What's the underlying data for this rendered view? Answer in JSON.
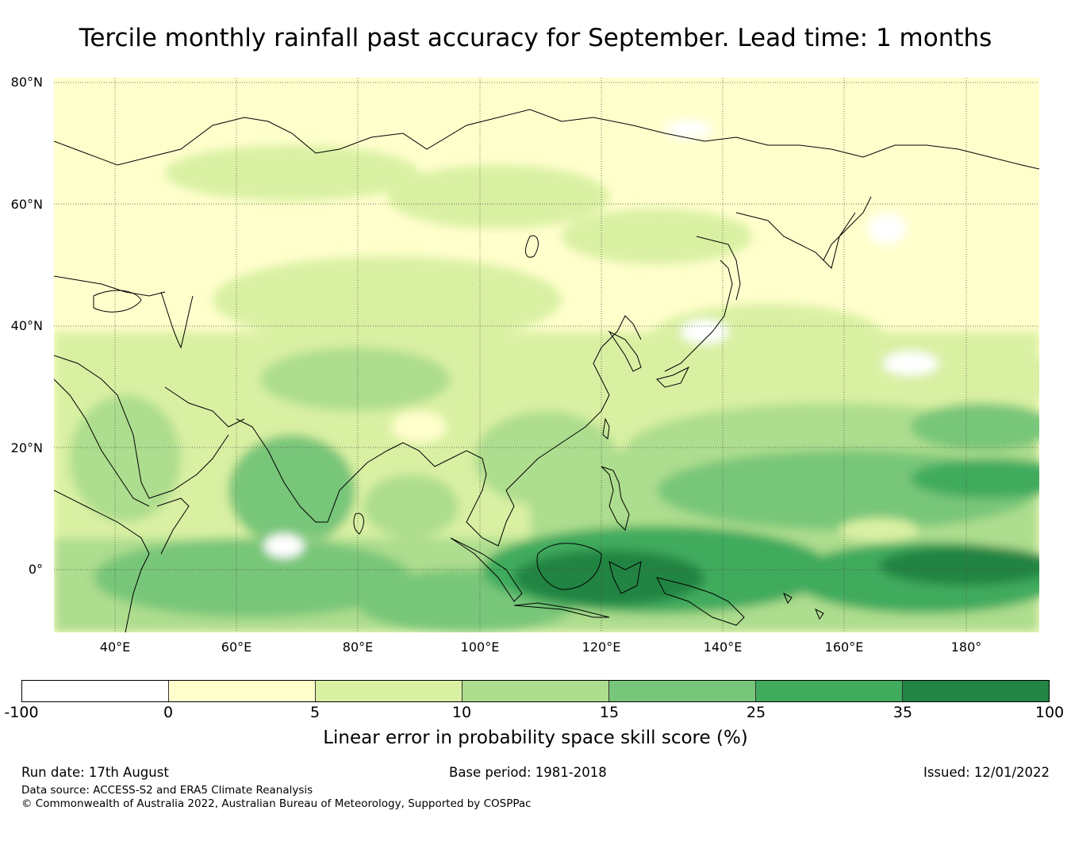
{
  "title": "Tercile monthly rainfall past accuracy for September. Lead time: 1 months",
  "map": {
    "lat_ticks": [
      "80°N",
      "60°N",
      "40°N",
      "20°N",
      "0°"
    ],
    "lon_ticks": [
      "40°E",
      "60°E",
      "80°E",
      "100°E",
      "120°E",
      "140°E",
      "160°E",
      "180°"
    ]
  },
  "colorbar": {
    "label": "Linear error in probability space skill score (%)",
    "ticks": [
      "-100",
      "0",
      "5",
      "10",
      "15",
      "25",
      "35",
      "100"
    ],
    "colors": [
      "#ffffff",
      "#ffffcc",
      "#d9f0a3",
      "#addd8e",
      "#78c679",
      "#41ab5d",
      "#238443"
    ]
  },
  "footer": {
    "run_date": "Run date: 17th August",
    "base_period": "Base period: 1981-2018",
    "issued": "Issued: 12/01/2022",
    "data_source": "Data source: ACCESS-S2 and ERA5 Climate Reanalysis",
    "copyright": "© Commonwealth of Australia 2022, Australian Bureau of Meteorology, Supported by COSPPac"
  }
}
